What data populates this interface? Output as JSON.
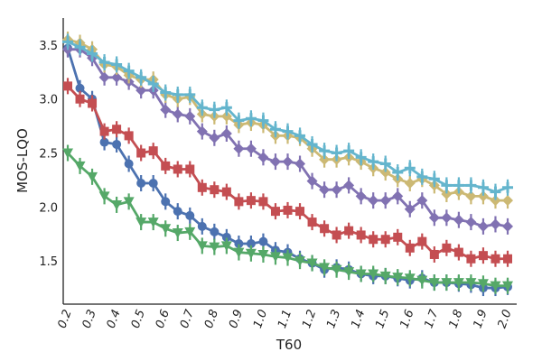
{
  "chart_data": {
    "type": "line",
    "xlabel": "T60",
    "ylabel": "MOS-LQO",
    "xlim": [
      0.2,
      2.0
    ],
    "ylim": [
      1.1,
      3.75
    ],
    "yticks": [
      "1.5",
      "2.0",
      "2.5",
      "3.0",
      "3.5"
    ],
    "yticks_values": [
      1.5,
      2.0,
      2.5,
      3.0,
      3.5
    ],
    "xticks": [
      "0.2",
      "0.3",
      "0.4",
      "0.5",
      "0.6",
      "0.7",
      "0.8",
      "0.9",
      "1.0",
      "1.1",
      "1.2",
      "1.3",
      "1.4",
      "1.5",
      "1.6",
      "1.7",
      "1.8",
      "1.9",
      "2.0"
    ],
    "grid": false,
    "x": [
      0.2,
      0.25,
      0.3,
      0.35,
      0.4,
      0.45,
      0.5,
      0.55,
      0.6,
      0.65,
      0.7,
      0.75,
      0.8,
      0.85,
      0.9,
      0.95,
      1.0,
      1.05,
      1.1,
      1.15,
      1.2,
      1.25,
      1.3,
      1.35,
      1.4,
      1.45,
      1.5,
      1.55,
      1.6,
      1.65,
      1.7,
      1.75,
      1.8,
      1.85,
      1.9,
      1.95,
      2.0
    ],
    "series": [
      {
        "color": "#4C72B0",
        "marker": "circle",
        "values": [
          3.47,
          3.1,
          3.0,
          2.6,
          2.58,
          2.4,
          2.22,
          2.22,
          2.05,
          1.96,
          1.92,
          1.82,
          1.77,
          1.72,
          1.66,
          1.66,
          1.68,
          1.6,
          1.58,
          1.52,
          1.48,
          1.42,
          1.44,
          1.42,
          1.38,
          1.36,
          1.36,
          1.34,
          1.32,
          1.34,
          1.3,
          1.3,
          1.29,
          1.28,
          1.25,
          1.25,
          1.26
        ]
      },
      {
        "color": "#55A868",
        "marker": "triangle-down",
        "values": [
          2.5,
          2.38,
          2.28,
          2.1,
          2.02,
          2.05,
          1.86,
          1.86,
          1.8,
          1.76,
          1.77,
          1.64,
          1.63,
          1.64,
          1.58,
          1.57,
          1.56,
          1.54,
          1.53,
          1.5,
          1.48,
          1.44,
          1.42,
          1.4,
          1.38,
          1.38,
          1.36,
          1.35,
          1.34,
          1.32,
          1.3,
          1.3,
          1.3,
          1.3,
          1.29,
          1.27,
          1.27
        ]
      },
      {
        "color": "#C44E52",
        "marker": "square",
        "values": [
          3.12,
          3.0,
          2.96,
          2.7,
          2.72,
          2.66,
          2.5,
          2.52,
          2.38,
          2.35,
          2.35,
          2.18,
          2.16,
          2.14,
          2.05,
          2.06,
          2.05,
          1.96,
          1.97,
          1.96,
          1.86,
          1.8,
          1.74,
          1.78,
          1.74,
          1.7,
          1.7,
          1.72,
          1.62,
          1.68,
          1.56,
          1.62,
          1.58,
          1.52,
          1.55,
          1.52,
          1.52
        ]
      },
      {
        "color": "#8172B2",
        "marker": "diamond",
        "values": [
          3.46,
          3.46,
          3.38,
          3.2,
          3.2,
          3.16,
          3.08,
          3.08,
          2.9,
          2.86,
          2.84,
          2.7,
          2.64,
          2.68,
          2.54,
          2.54,
          2.46,
          2.42,
          2.42,
          2.4,
          2.24,
          2.16,
          2.16,
          2.2,
          2.1,
          2.06,
          2.06,
          2.1,
          1.98,
          2.06,
          1.9,
          1.9,
          1.88,
          1.86,
          1.82,
          1.84,
          1.82
        ]
      },
      {
        "color": "#CCB974",
        "marker": "diamond",
        "values": [
          3.55,
          3.52,
          3.46,
          3.32,
          3.3,
          3.22,
          3.18,
          3.18,
          3.04,
          3.0,
          3.02,
          2.86,
          2.84,
          2.84,
          2.76,
          2.78,
          2.76,
          2.66,
          2.66,
          2.64,
          2.54,
          2.44,
          2.44,
          2.46,
          2.42,
          2.36,
          2.32,
          2.26,
          2.22,
          2.26,
          2.2,
          2.12,
          2.14,
          2.1,
          2.1,
          2.06,
          2.06
        ]
      },
      {
        "color": "#64B5CD",
        "marker": "cross",
        "values": [
          3.53,
          3.48,
          3.42,
          3.34,
          3.32,
          3.26,
          3.2,
          3.14,
          3.06,
          3.04,
          3.04,
          2.92,
          2.9,
          2.92,
          2.8,
          2.82,
          2.8,
          2.72,
          2.7,
          2.66,
          2.58,
          2.52,
          2.5,
          2.52,
          2.46,
          2.42,
          2.4,
          2.32,
          2.36,
          2.28,
          2.26,
          2.2,
          2.2,
          2.2,
          2.18,
          2.14,
          2.18
        ]
      }
    ]
  }
}
